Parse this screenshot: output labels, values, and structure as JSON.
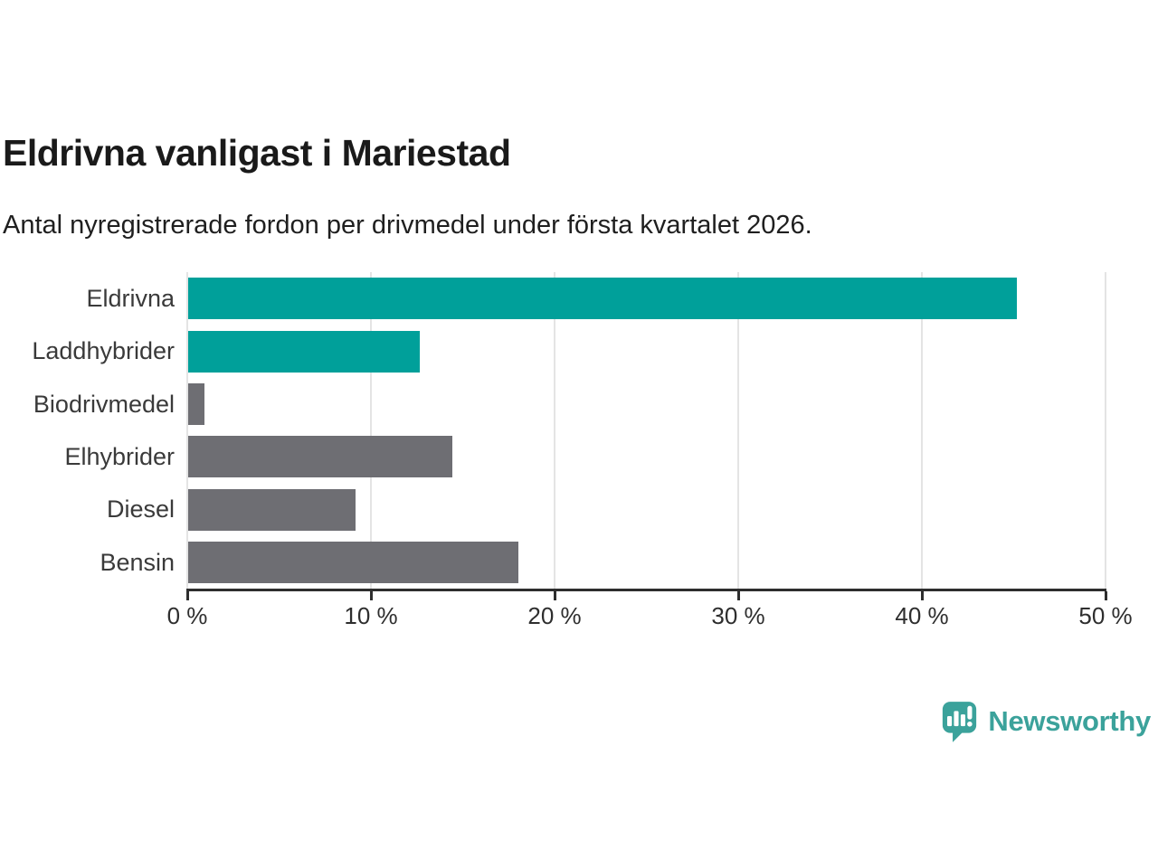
{
  "header": {
    "title": "Eldrivna vanligast i Mariestad",
    "subtitle": "Antal nyregistrerade fordon per drivmedel under första kvartalet 2026."
  },
  "chart_data": {
    "type": "bar",
    "orientation": "horizontal",
    "title": "Eldrivna vanligast i Mariestad",
    "subtitle": "Antal nyregistrerade fordon per drivmedel under första kvartalet 2026.",
    "categories": [
      "Eldrivna",
      "Laddhybrider",
      "Biodrivmedel",
      "Elhybrider",
      "Diesel",
      "Bensin"
    ],
    "values": [
      45.1,
      12.6,
      0.9,
      14.4,
      9.1,
      18.0
    ],
    "unit": "%",
    "bar_colors": [
      "#00A09A",
      "#00A09A",
      "#6E6E73",
      "#6E6E73",
      "#6E6E73",
      "#6E6E73"
    ],
    "highlight_color": "#00A09A",
    "default_color": "#6E6E73",
    "xlim": [
      0,
      50
    ],
    "x_ticks": [
      0,
      10,
      20,
      30,
      40,
      50
    ],
    "x_tick_labels": [
      "0 %",
      "10 %",
      "20 %",
      "30 %",
      "40 %",
      "50 %"
    ],
    "grid": true,
    "legend": "none",
    "background": "#ffffff"
  },
  "footer": {
    "brand": "Newsworthy",
    "brand_color": "#3BA29B",
    "logo_icon": "newsworthy-speech-bubble-bar-chart"
  }
}
